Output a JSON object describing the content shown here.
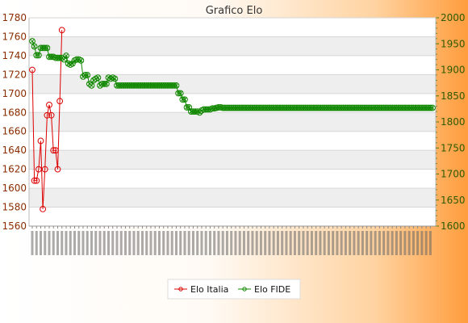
{
  "chart_data": {
    "type": "line",
    "title": "Grafico Elo",
    "y_left": {
      "min": 1560,
      "max": 1780,
      "ticks": [
        1560,
        1580,
        1600,
        1620,
        1640,
        1660,
        1680,
        1700,
        1720,
        1740,
        1760,
        1780
      ]
    },
    "y_right": {
      "min": 1600,
      "max": 2000,
      "ticks": [
        1600,
        1650,
        1700,
        1750,
        1800,
        1850,
        1900,
        1950,
        2000
      ]
    },
    "grid": true,
    "legend_position": "bottom",
    "x_tick_labels_legible": false,
    "n_points": 190,
    "series": [
      {
        "name": "Elo Italia",
        "axis": "left",
        "color": "#dd0000",
        "marker": "circle",
        "points": [
          [
            0,
            1725
          ],
          [
            1,
            1608
          ],
          [
            2,
            1608
          ],
          [
            3,
            1620
          ],
          [
            4,
            1650
          ],
          [
            5,
            1578
          ],
          [
            6,
            1620
          ],
          [
            7,
            1677
          ],
          [
            8,
            1688
          ],
          [
            9,
            1677
          ],
          [
            10,
            1640
          ],
          [
            11,
            1640
          ],
          [
            12,
            1620
          ],
          [
            13,
            1692
          ],
          [
            14,
            1767
          ]
        ]
      },
      {
        "name": "Elo FIDE",
        "axis": "right",
        "color": "#118800",
        "marker": "circle-x",
        "values": [
          1955,
          1945,
          1928,
          1928,
          1942,
          1942,
          1942,
          1942,
          1925,
          1925,
          1925,
          1923,
          1923,
          1923,
          1923,
          1920,
          1927,
          1912,
          1910,
          1912,
          1918,
          1920,
          1920,
          1918,
          1887,
          1890,
          1890,
          1873,
          1870,
          1880,
          1883,
          1885,
          1870,
          1873,
          1873,
          1873,
          1885,
          1883,
          1885,
          1883,
          1870,
          1870,
          1870,
          1870,
          1870,
          1870,
          1870,
          1870,
          1870,
          1870,
          1870,
          1870,
          1870,
          1870,
          1870,
          1870,
          1870,
          1870,
          1870,
          1870,
          1870,
          1870,
          1870,
          1870,
          1870,
          1870,
          1870,
          1870,
          1870,
          1855,
          1855,
          1843,
          1843,
          1828,
          1828,
          1820,
          1820,
          1820,
          1820,
          1818,
          1822,
          1824,
          1824,
          1824,
          1824,
          1826,
          1826,
          1827,
          1828,
          1828,
          1827,
          1827,
          1827,
          1827,
          1827,
          1827,
          1827,
          1827,
          1827,
          1827,
          1827,
          1827,
          1827,
          1827,
          1827,
          1827,
          1827,
          1827,
          1827,
          1827,
          1827,
          1827,
          1827,
          1827,
          1827,
          1827,
          1827,
          1827,
          1827,
          1827,
          1827,
          1827,
          1827,
          1827,
          1827,
          1827,
          1827,
          1827,
          1827,
          1827,
          1827,
          1827,
          1827,
          1827,
          1827,
          1827,
          1827,
          1827,
          1827,
          1827,
          1827,
          1827,
          1827,
          1827,
          1827,
          1827,
          1827,
          1827,
          1827,
          1827,
          1827,
          1827,
          1827,
          1827,
          1827,
          1827,
          1827,
          1827,
          1827,
          1827,
          1827,
          1827,
          1827,
          1827,
          1827,
          1827,
          1827,
          1827,
          1827,
          1827,
          1827,
          1827,
          1827,
          1827,
          1827,
          1827,
          1827,
          1827,
          1827,
          1827,
          1827,
          1827,
          1827,
          1827,
          1827,
          1827,
          1827,
          1827,
          1827,
          1827
        ]
      }
    ]
  }
}
